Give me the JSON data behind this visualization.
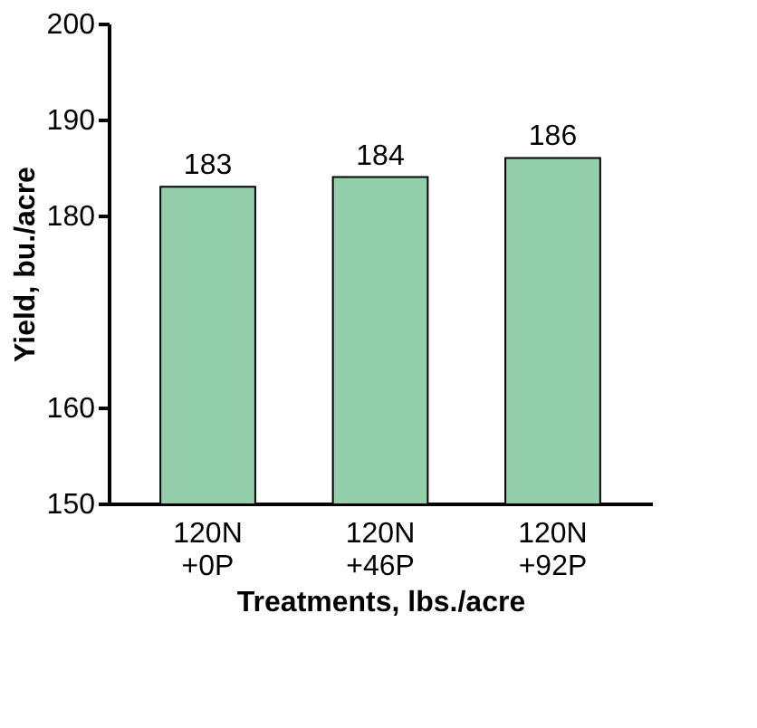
{
  "chart_data": {
    "type": "bar",
    "xlabel": "Treatments, lbs./acre",
    "ylabel": "Yield, bu./acre",
    "categories": [
      "120N +0P",
      "120N +46P",
      "120N +92P"
    ],
    "values": [
      183,
      184,
      186
    ],
    "color": "#93cfab",
    "ylim": [
      150,
      200
    ],
    "yticks": [
      150,
      160,
      180,
      190,
      200
    ],
    "grid": false,
    "data_labels": true
  }
}
